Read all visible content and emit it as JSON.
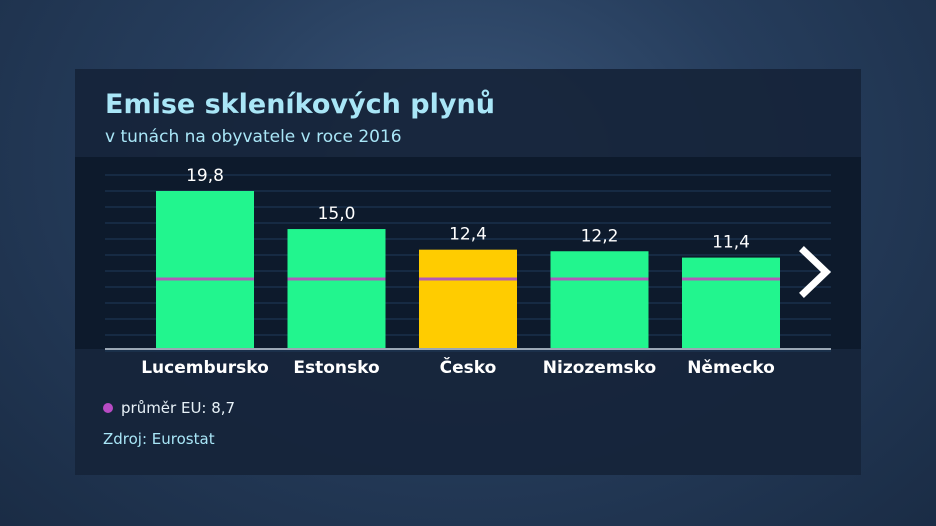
{
  "title": "Emise skleníkových plynů",
  "subtitle": "v tunách na obyvatele v roce 2016",
  "legend_label": "průměr EU: 8,7",
  "source": "Zdroj: Eurostat",
  "colors": {
    "bar": "#22f58e",
    "highlight": "#ffcc00",
    "avg_line": "#b05ab8",
    "avg_dot": "#b84bc4"
  },
  "next_icon": "chevron-right-icon",
  "chart_data": {
    "type": "bar",
    "title": "Emise skleníkových plynů",
    "subtitle": "v tunách na obyvatele v roce 2016",
    "categories": [
      "Lucembursko",
      "Estonsko",
      "Česko",
      "Nizozemsko",
      "Německo"
    ],
    "values": [
      19.8,
      15.0,
      12.4,
      12.2,
      11.4
    ],
    "value_labels": [
      "19,8",
      "15,0",
      "12,4",
      "12,2",
      "11,4"
    ],
    "highlight": "Česko",
    "reference_line": {
      "label": "průměr EU",
      "value": 8.7
    },
    "ylim": [
      0,
      22
    ],
    "grid": true
  }
}
